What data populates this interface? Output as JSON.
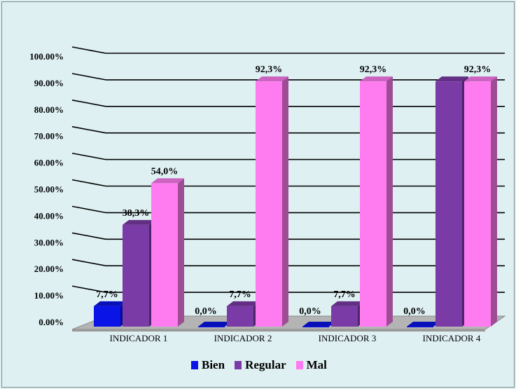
{
  "chart_data": {
    "type": "bar",
    "categories": [
      "INDICADOR 1",
      "INDICADOR 2",
      "INDICADOR 3",
      "INDICADOR 4"
    ],
    "series": [
      {
        "name": "Bien",
        "color": "#0a14e6",
        "values": [
          7.7,
          0.0,
          0.0,
          0.0
        ],
        "labels": [
          "7,7%",
          "0,0%",
          "0,0%",
          "0,0%"
        ]
      },
      {
        "name": "Regular",
        "color": "#7a3ba6",
        "values": [
          38.3,
          7.7,
          7.7,
          92.3
        ],
        "labels": [
          "38,3%",
          "7,7%",
          "7,7%",
          ""
        ]
      },
      {
        "name": "Mal",
        "color": "#ff7cf0",
        "values": [
          54.0,
          92.3,
          92.3,
          92.3
        ],
        "labels": [
          "54,0%",
          "92,3%",
          "92,3%",
          "92,3%"
        ]
      }
    ],
    "y_ticks": [
      "0.00%",
      "10.00%",
      "20.00%",
      "30.00%",
      "40.00%",
      "50.00%",
      "60.00%",
      "70.00%",
      "80.00%",
      "90.00%",
      "100.00%"
    ],
    "ylim": [
      0,
      100
    ],
    "grid": true,
    "legend": "bottom"
  }
}
